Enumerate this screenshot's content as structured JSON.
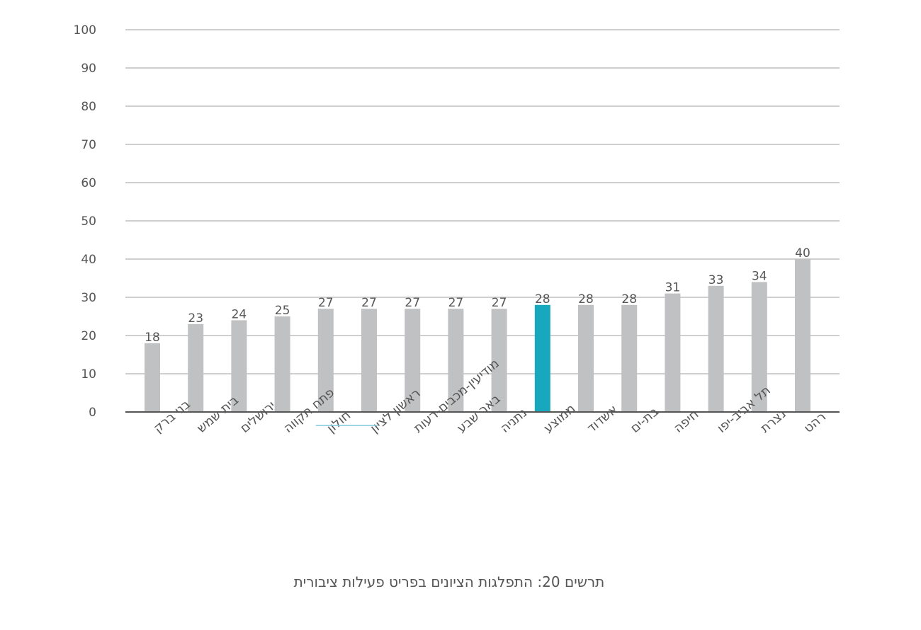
{
  "chart_data": {
    "type": "bar",
    "categories": [
      "בני ברק",
      "בית שמש",
      "ירושלים",
      "פתח תקווה",
      "חולון",
      "ראשון לציון",
      "מודיעין-מכבים-רעות",
      "באר שבע",
      "נתניה",
      "ממוצע",
      "אשדוד",
      "בת-ים",
      "חיפה",
      "תל אביב-יפו",
      "נצרת",
      "רהט"
    ],
    "values": [
      18,
      23,
      24,
      25,
      27,
      27,
      27,
      27,
      27,
      28,
      28,
      28,
      31,
      33,
      34,
      40
    ],
    "highlight_category": "ממוצע",
    "ylim": [
      0,
      100
    ],
    "yticks": [
      0,
      10,
      20,
      30,
      40,
      50,
      60,
      70,
      80,
      90,
      100
    ],
    "grid": true,
    "xlabel": "",
    "ylabel": "",
    "caption": "תרשים 20: התפלגות הציונים בפריט פעילות ציבורית",
    "colors": {
      "bar": "#c0c1c3",
      "highlight": "#17a8bd",
      "grid": "#cfcfcf",
      "axis": "#555555",
      "text": "#555555",
      "underline": "#7fc8e0"
    }
  }
}
